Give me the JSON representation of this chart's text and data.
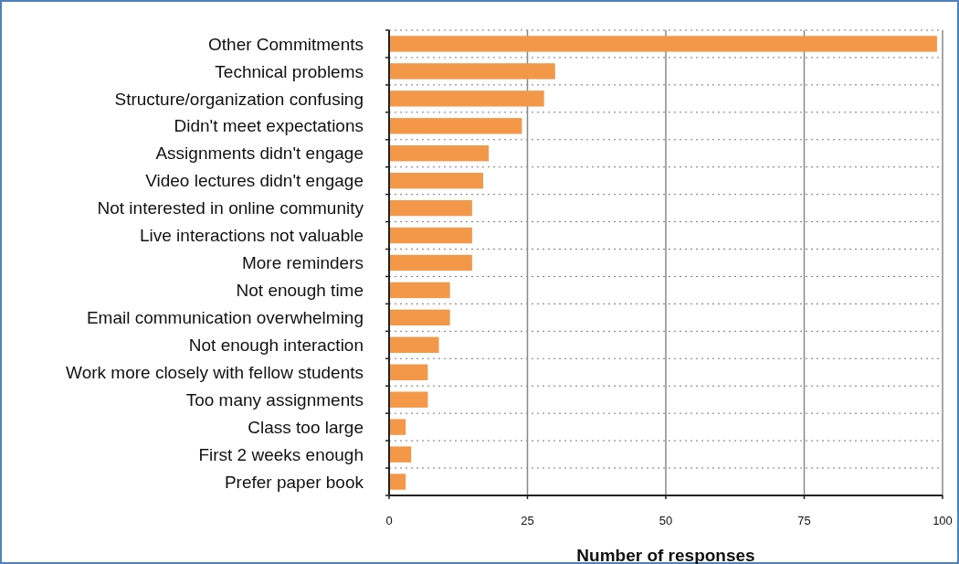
{
  "chart_data": {
    "type": "bar",
    "orientation": "horizontal",
    "xlabel": "Number of responses",
    "categories": [
      "Other Commitments",
      "Technical problems",
      "Structure/organization confusing",
      "Didn't meet expectations",
      "Assignments didn't engage",
      "Video lectures didn't engage",
      "Not interested in online community",
      "Live interactions not valuable",
      "More reminders",
      "Not enough time",
      "Email communication overwhelming",
      "Not enough interaction",
      "Work more closely with fellow students",
      "Too many assignments",
      "Class too large",
      "First 2 weeks enough",
      "Prefer paper book"
    ],
    "values": [
      99,
      30,
      28,
      24,
      18,
      17,
      15,
      15,
      15,
      11,
      11,
      9,
      7,
      7,
      3,
      4,
      3
    ],
    "color": "#f39748",
    "xlim": [
      0,
      100
    ],
    "xticks": [
      0,
      25,
      50,
      75,
      100
    ],
    "grid": true
  }
}
